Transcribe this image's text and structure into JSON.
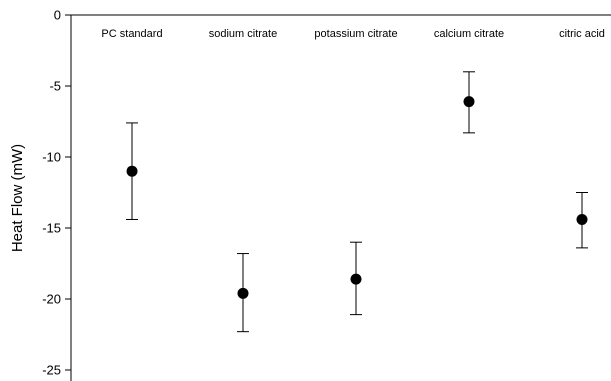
{
  "chart_data": {
    "type": "scatter",
    "categories": [
      "PC standard",
      "sodium citrate",
      "potassium citrate",
      "calcium citrate",
      "citric acid"
    ],
    "values": [
      -11.0,
      -19.6,
      -18.6,
      -6.1,
      -14.4
    ],
    "error_low": [
      -14.4,
      -22.3,
      -21.1,
      -8.3,
      -16.4
    ],
    "error_high": [
      -7.6,
      -16.8,
      -16.0,
      -4.0,
      -12.5
    ],
    "ylabel": "Heat Flow (mW)",
    "ylim": [
      -26,
      0
    ],
    "yticks": [
      0,
      -5,
      -10,
      -15,
      -20,
      -25
    ],
    "ytick_labels": [
      "0",
      "-5",
      "-10",
      "-15",
      "-20",
      "-25"
    ],
    "grid": false,
    "marker_color": "#000000"
  }
}
